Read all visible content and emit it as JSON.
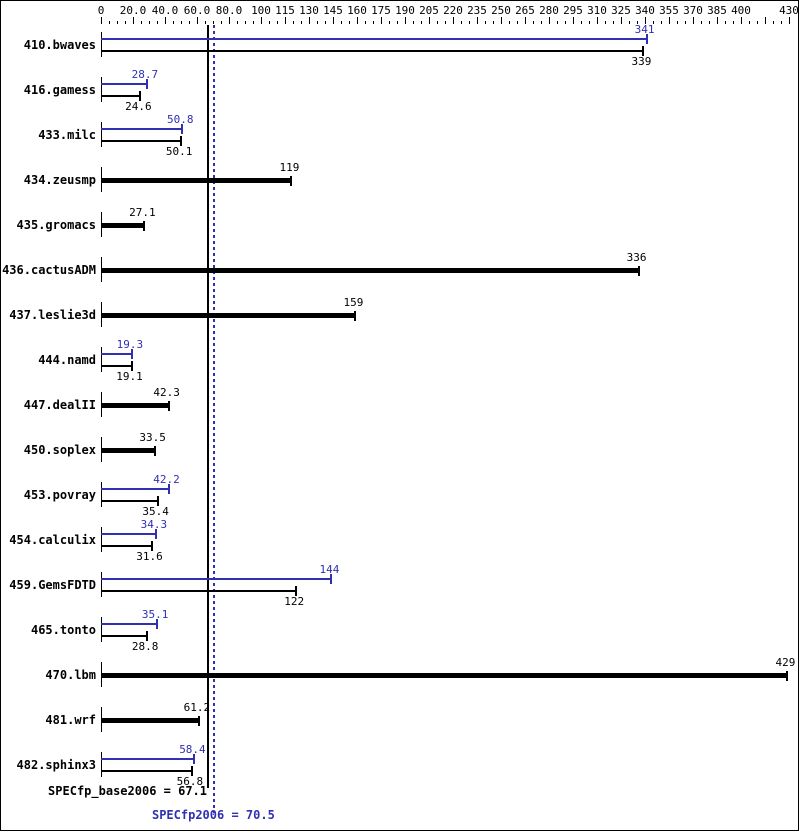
{
  "chart_data": {
    "type": "bar",
    "orientation": "horizontal",
    "title": "",
    "colors": {
      "peak": "#3030b2",
      "base": "#000000",
      "background": "#ffffff"
    },
    "axis": {
      "min": 0,
      "max": 430,
      "minor_step": 5,
      "labeled_ticks": [
        {
          "v": 0,
          "label": "0"
        },
        {
          "v": 20,
          "label": "20.0"
        },
        {
          "v": 40,
          "label": "40.0"
        },
        {
          "v": 60,
          "label": "60.0"
        },
        {
          "v": 80,
          "label": "80.0"
        },
        {
          "v": 100,
          "label": "100"
        },
        {
          "v": 115,
          "label": "115"
        },
        {
          "v": 130,
          "label": "130"
        },
        {
          "v": 145,
          "label": "145"
        },
        {
          "v": 160,
          "label": "160"
        },
        {
          "v": 175,
          "label": "175"
        },
        {
          "v": 190,
          "label": "190"
        },
        {
          "v": 205,
          "label": "205"
        },
        {
          "v": 220,
          "label": "220"
        },
        {
          "v": 235,
          "label": "235"
        },
        {
          "v": 250,
          "label": "250"
        },
        {
          "v": 265,
          "label": "265"
        },
        {
          "v": 280,
          "label": "280"
        },
        {
          "v": 295,
          "label": "295"
        },
        {
          "v": 310,
          "label": "310"
        },
        {
          "v": 325,
          "label": "325"
        },
        {
          "v": 340,
          "label": "340"
        },
        {
          "v": 355,
          "label": "355"
        },
        {
          "v": 370,
          "label": "370"
        },
        {
          "v": 385,
          "label": "385"
        },
        {
          "v": 400,
          "label": "400"
        },
        {
          "v": 430,
          "label": "430"
        }
      ]
    },
    "benchmarks": [
      {
        "name": "410.bwaves",
        "peak": {
          "value": 341,
          "label": "341"
        },
        "base": {
          "value": 339,
          "label": "339"
        }
      },
      {
        "name": "416.gamess",
        "peak": {
          "value": 28.7,
          "label": "28.7"
        },
        "base": {
          "value": 24.6,
          "label": "24.6"
        }
      },
      {
        "name": "433.milc",
        "peak": {
          "value": 50.8,
          "label": "50.8"
        },
        "base": {
          "value": 50.1,
          "label": "50.1"
        }
      },
      {
        "name": "434.zeusmp",
        "peak": null,
        "base": {
          "value": 119,
          "label": "119"
        }
      },
      {
        "name": "435.gromacs",
        "peak": null,
        "base": {
          "value": 27.1,
          "label": "27.1"
        }
      },
      {
        "name": "436.cactusADM",
        "peak": null,
        "base": {
          "value": 336,
          "label": "336"
        }
      },
      {
        "name": "437.leslie3d",
        "peak": null,
        "base": {
          "value": 159,
          "label": "159"
        }
      },
      {
        "name": "444.namd",
        "peak": {
          "value": 19.3,
          "label": "19.3"
        },
        "base": {
          "value": 19.1,
          "label": "19.1"
        }
      },
      {
        "name": "447.dealII",
        "peak": null,
        "base": {
          "value": 42.3,
          "label": "42.3"
        }
      },
      {
        "name": "450.soplex",
        "peak": null,
        "base": {
          "value": 33.5,
          "label": "33.5"
        }
      },
      {
        "name": "453.povray",
        "peak": {
          "value": 42.2,
          "label": "42.2"
        },
        "base": {
          "value": 35.4,
          "label": "35.4"
        }
      },
      {
        "name": "454.calculix",
        "peak": {
          "value": 34.3,
          "label": "34.3"
        },
        "base": {
          "value": 31.6,
          "label": "31.6"
        }
      },
      {
        "name": "459.GemsFDTD",
        "peak": {
          "value": 144,
          "label": "144"
        },
        "base": {
          "value": 122,
          "label": "122"
        }
      },
      {
        "name": "465.tonto",
        "peak": {
          "value": 35.1,
          "label": "35.1"
        },
        "base": {
          "value": 28.8,
          "label": "28.8"
        }
      },
      {
        "name": "470.lbm",
        "peak": null,
        "base": {
          "value": 429,
          "label": "429"
        }
      },
      {
        "name": "481.wrf",
        "peak": null,
        "base": {
          "value": 61.2,
          "label": "61.2"
        }
      },
      {
        "name": "482.sphinx3",
        "peak": {
          "value": 58.4,
          "label": "58.4"
        },
        "base": {
          "value": 56.8,
          "label": "56.8"
        }
      }
    ],
    "summary": {
      "base": {
        "label": "SPECfp_base2006 = 67.1",
        "value": 67.1
      },
      "peak": {
        "label": "SPECfp2006 = 70.5",
        "value": 70.5
      }
    }
  }
}
